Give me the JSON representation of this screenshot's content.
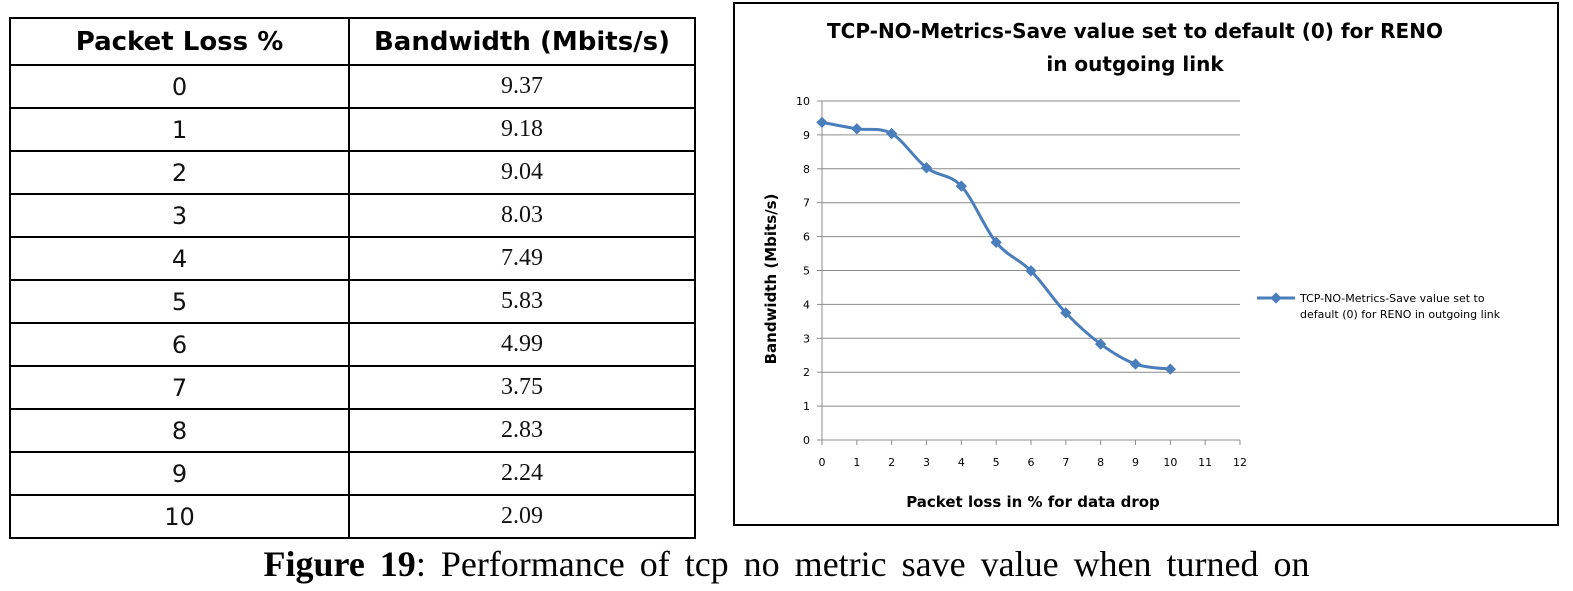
{
  "table": {
    "headers": [
      "Packet Loss %",
      "Bandwidth (Mbits/s)"
    ],
    "rows": [
      [
        "0",
        "9.37"
      ],
      [
        "1",
        "9.18"
      ],
      [
        "2",
        "9.04"
      ],
      [
        "3",
        "8.03"
      ],
      [
        "4",
        "7.49"
      ],
      [
        "5",
        "5.83"
      ],
      [
        "6",
        "4.99"
      ],
      [
        "7",
        "3.75"
      ],
      [
        "8",
        "2.83"
      ],
      [
        "9",
        "2.24"
      ],
      [
        "10",
        "2.09"
      ]
    ]
  },
  "chart_data": {
    "type": "line",
    "title_lines": [
      "TCP-NO-Metrics-Save value set to default (0) for RENO",
      "in outgoing link"
    ],
    "xlabel": "Packet loss in % for data drop",
    "ylabel": "Bandwidth (Mbits/s)",
    "x_ticks": [
      "0",
      "1",
      "2",
      "3",
      "4",
      "5",
      "6",
      "7",
      "8",
      "9",
      "10",
      "11",
      "12"
    ],
    "y_ticks": [
      "0",
      "1",
      "2",
      "3",
      "4",
      "5",
      "6",
      "7",
      "8",
      "9",
      "10"
    ],
    "xlim": [
      0,
      12
    ],
    "ylim": [
      0,
      10
    ],
    "grid": true,
    "legend_position": "right",
    "series": [
      {
        "name_lines": [
          "TCP-NO-Metrics-Save value set to",
          "default (0) for RENO in outgoing link"
        ],
        "color": "#4a7ebb",
        "x": [
          0,
          1,
          2,
          3,
          4,
          5,
          6,
          7,
          8,
          9,
          10
        ],
        "y": [
          9.37,
          9.18,
          9.04,
          8.03,
          7.49,
          5.83,
          4.99,
          3.75,
          2.83,
          2.24,
          2.09
        ]
      }
    ]
  },
  "caption": {
    "label": "Figure 19",
    "text": ": Performance of tcp no metric save value when turned on"
  }
}
